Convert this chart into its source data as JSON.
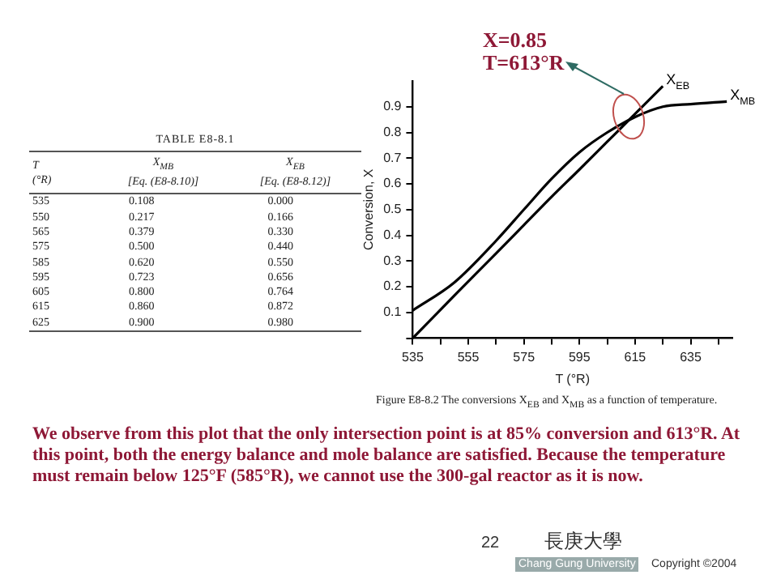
{
  "chart_data": [
    {
      "type": "other",
      "title": "TABLE E8-8.1",
      "annotations": [
        "T\n(°R)",
        "X$_{MB}$\n[Eq. (E8-8.10)]",
        "X$_{EB}$\n[Eq. (E8-8.12)]",
        "535 0.108 0.000",
        "550 0.217 0.166",
        "565 0.379 0.330",
        "575 0.500 0.440",
        "585 0.620 0.550",
        "595 0.723 0.656",
        "605 0.800 0.764",
        "615 0.860 0.872",
        "625 0.900 0.980"
      ]
    },
    {
      "type": "line",
      "xlabel": "T (°R)",
      "ylabel": "Conversion, X",
      "xlim": [
        535,
        650
      ],
      "ylim": [
        0,
        1
      ],
      "xticks": [
        535,
        {
          "value": 545,
          "label": null
        },
        555,
        {
          "value": 565,
          "label": null
        },
        575,
        {
          "value": 585,
          "label": null
        },
        595,
        {
          "value": 605,
          "label": null
        },
        615,
        {
          "value": 625,
          "label": null
        },
        635,
        {
          "value": 645,
          "label": null
        }
      ],
      "yticks": [
        {
          "value": 0,
          "label": null
        },
        0.1,
        0.2,
        0.3,
        0.4,
        0.5,
        0.6,
        0.7,
        0.8,
        0.9
      ],
      "grid": false,
      "legend": false,
      "marker": "none",
      "line_style": "solid",
      "series": [
        {
          "name": "X$_{EB}$",
          "color": "#000000",
          "x": [
            535,
            550,
            565,
            575,
            585,
            595,
            605,
            615,
            625
          ],
          "values": [
            0.0,
            0.166,
            0.33,
            0.44,
            0.55,
            0.656,
            0.764,
            0.872,
            0.98
          ]
        },
        {
          "name": "X$_{MB}$",
          "color": "#000000",
          "x": [
            535,
            550,
            565,
            575,
            585,
            595,
            605,
            615,
            625,
            635,
            648
          ],
          "values": [
            0.108,
            0.217,
            0.379,
            0.5,
            0.62,
            0.723,
            0.8,
            0.86,
            0.9,
            0.91,
            0.92
          ]
        }
      ],
      "annotations": [
        "X=0.85\nT=613°R",
        "Figure E8-8.2    The conversions X$_{EB}$ and X$_{MB}$ as a function of temperature.",
        "We observe from this plot that the only intersection point is at 85% conversion and 613°R. At this point, both the energy balance and mole balance are satisfied. Because the temperature must remain below 125°F (585°R), we cannot use the 300-gal reactor as it is now.",
        "22",
        "長庚大學",
        "Chang Gung University",
        "Copyright ©2004"
      ]
    }
  ]
}
